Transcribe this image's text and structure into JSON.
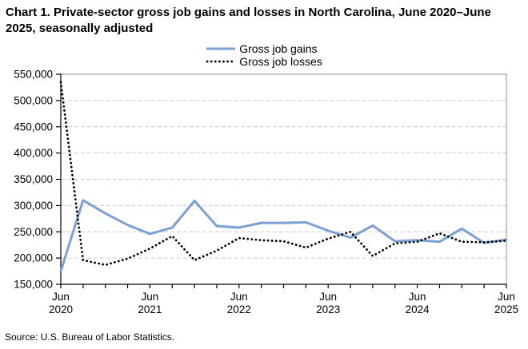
{
  "title": "Chart 1. Private-sector gross job gains and losses in North Carolina, June 2020–June 2025, seasonally adjusted",
  "source": "Source: U.S. Bureau of Labor Statistics.",
  "legend": [
    {
      "label": "Gross job gains",
      "style": "solid",
      "color": "#7aa0d4"
    },
    {
      "label": "Gross job losses",
      "style": "dotted",
      "color": "#000000"
    }
  ],
  "colors": {
    "gains_line": "#7aa0d4",
    "losses_line": "#000000",
    "gridline": "#c9c9c9",
    "plot_border": "#8c8c8c",
    "axis": "#000000",
    "background": "#ffffff"
  },
  "chart_data": {
    "type": "line",
    "title": "Chart 1. Private-sector gross job gains and losses in North Carolina, June 2020–June 2025, seasonally adjusted",
    "x": [
      "Jun 2020",
      "Sep 2020",
      "Dec 2020",
      "Mar 2021",
      "Jun 2021",
      "Sep 2021",
      "Dec 2021",
      "Mar 2022",
      "Jun 2022",
      "Sep 2022",
      "Dec 2022",
      "Mar 2023",
      "Jun 2023",
      "Sep 2023",
      "Dec 2023",
      "Mar 2024",
      "Jun 2024",
      "Sep 2024",
      "Dec 2024",
      "Mar 2025",
      "Jun 2025"
    ],
    "x_major_tick_labels": [
      "Jun 2020",
      "Jun 2021",
      "Jun 2022",
      "Jun 2023",
      "Jun 2024",
      "Jun 2025"
    ],
    "series": [
      {
        "name": "Gross job gains",
        "style": "solid",
        "color": "#7aa0d4",
        "values": [
          175000,
          310000,
          285000,
          263000,
          246000,
          258000,
          309000,
          261000,
          258000,
          267000,
          267000,
          268000,
          252000,
          239000,
          262000,
          232000,
          234000,
          231000,
          256000,
          229000,
          235000
        ]
      },
      {
        "name": "Gross job losses",
        "style": "dotted",
        "color": "#000000",
        "values": [
          535000,
          196000,
          187000,
          199000,
          218000,
          242000,
          196000,
          214000,
          238000,
          234000,
          232000,
          220000,
          237000,
          250000,
          204000,
          228000,
          231000,
          247000,
          231000,
          230000,
          233000
        ]
      }
    ],
    "ylim": [
      150000,
      550000
    ],
    "ytick_step": 50000,
    "ytick_labels": [
      "150,000",
      "200,000",
      "250,000",
      "300,000",
      "350,000",
      "400,000",
      "450,000",
      "500,000",
      "550,000"
    ],
    "grid": "horizontal-dashed",
    "legend_position": "top-center",
    "seasonally_adjusted": true
  }
}
